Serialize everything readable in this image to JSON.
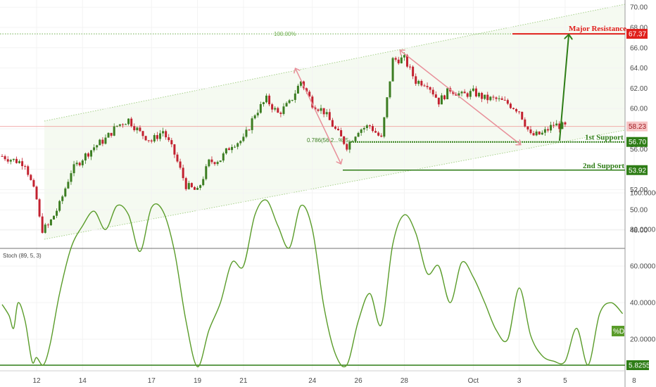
{
  "chart_data": [
    {
      "type": "candlestick",
      "y_range": [
        46.5,
        70.5
      ],
      "y_ticks": [
        "48.00",
        "50.00",
        "52.00",
        "54.00",
        "56.00",
        "58.00",
        "60.00",
        "62.00",
        "64.00",
        "66.00",
        "68.00",
        "70.00"
      ],
      "x_ticks": [
        "12",
        "14",
        "17",
        "19",
        "21",
        "24",
        "26",
        "28",
        "Oct",
        "3",
        "5",
        "8"
      ],
      "x_index": [
        0,
        2,
        5,
        7,
        9,
        12,
        14,
        16,
        19,
        21,
        23,
        26
      ],
      "path": [
        [
          -1.5,
          55.3
        ],
        [
          -1,
          54.9
        ],
        [
          -0.5,
          54.6
        ],
        [
          0,
          51
        ],
        [
          0.2,
          48
        ],
        [
          0.5,
          48.4
        ],
        [
          1,
          50.5
        ],
        [
          1.5,
          53.8
        ],
        [
          2,
          55.1
        ],
        [
          2.5,
          56.2
        ],
        [
          3,
          57
        ],
        [
          3.5,
          58.3
        ],
        [
          4,
          58.9
        ],
        [
          4.5,
          57.6
        ],
        [
          5,
          56.8
        ],
        [
          5.5,
          57.8
        ],
        [
          6,
          55.5
        ],
        [
          6.5,
          52.4
        ],
        [
          7,
          51.8
        ],
        [
          7.5,
          54.7
        ],
        [
          8,
          55
        ],
        [
          8.5,
          56.5
        ],
        [
          9,
          56.9
        ],
        [
          9.5,
          59.5
        ],
        [
          10,
          60.9
        ],
        [
          10.5,
          59.5
        ],
        [
          11,
          60.5
        ],
        [
          11.5,
          62.7
        ],
        [
          12,
          60.5
        ],
        [
          12.5,
          59.7
        ],
        [
          13,
          57.9
        ],
        [
          13.5,
          56.3
        ],
        [
          14,
          57.9
        ],
        [
          14.5,
          58.3
        ],
        [
          15,
          57
        ],
        [
          15.5,
          64.8
        ],
        [
          16,
          64.9
        ],
        [
          16.5,
          62.7
        ],
        [
          17,
          62.5
        ],
        [
          17.5,
          60.7
        ],
        [
          18,
          61.9
        ],
        [
          18.5,
          61.3
        ],
        [
          19,
          61.6
        ],
        [
          19.5,
          61
        ],
        [
          20,
          60.9
        ],
        [
          20.5,
          60.5
        ],
        [
          21,
          59.8
        ],
        [
          21.5,
          57.3
        ],
        [
          22,
          57.5
        ],
        [
          22.5,
          58.4
        ],
        [
          23,
          58.2
        ]
      ],
      "current_price": "58.23",
      "levels": [
        {
          "label": "Major Resistance",
          "value": 67.37,
          "badge": "67.37",
          "color": "#e0201c"
        },
        {
          "label": "1st Support",
          "value": 56.7,
          "badge": "56.70",
          "color": "#2e7d16"
        },
        {
          "label": "2nd Support",
          "value": 53.92,
          "badge": "53.92",
          "color": "#2e7d16"
        }
      ],
      "fib_labels": {
        "top": "100.00%",
        "mid": "0.786(56.2...%(5..."
      }
    },
    {
      "type": "line",
      "title": "Stoch (89, 5, 3)",
      "series": [
        {
          "name": "%D",
          "color": "#5a9c2a"
        }
      ],
      "y_range": [
        0,
        102
      ],
      "y_ticks": [
        "20.0000",
        "40.0000",
        "60.0000",
        "80.0000",
        "100.0000"
      ],
      "min_badge": "5.8255",
      "min_value": 5.8255,
      "points": [
        [
          -1.5,
          39
        ],
        [
          -1.2,
          33
        ],
        [
          -1,
          26
        ],
        [
          -0.8,
          40
        ],
        [
          -0.5,
          30
        ],
        [
          -0.2,
          8
        ],
        [
          0,
          10
        ],
        [
          0.3,
          6
        ],
        [
          0.6,
          18
        ],
        [
          1,
          45
        ],
        [
          1.5,
          70
        ],
        [
          2,
          82
        ],
        [
          2.5,
          90
        ],
        [
          3,
          80
        ],
        [
          3.5,
          93
        ],
        [
          4,
          88
        ],
        [
          4.5,
          68
        ],
        [
          5,
          92
        ],
        [
          5.5,
          90
        ],
        [
          6,
          68
        ],
        [
          6.5,
          30
        ],
        [
          7,
          5
        ],
        [
          7.5,
          25
        ],
        [
          8,
          40
        ],
        [
          8.5,
          62
        ],
        [
          9,
          60
        ],
        [
          9.5,
          88
        ],
        [
          10,
          96
        ],
        [
          10.5,
          82
        ],
        [
          11,
          70
        ],
        [
          11.5,
          93
        ],
        [
          12,
          80
        ],
        [
          12.5,
          38
        ],
        [
          13,
          12
        ],
        [
          13.5,
          6
        ],
        [
          14,
          30
        ],
        [
          14.5,
          45
        ],
        [
          15,
          28
        ],
        [
          15.5,
          72
        ],
        [
          16,
          88
        ],
        [
          16.5,
          78
        ],
        [
          17,
          56
        ],
        [
          17.5,
          60
        ],
        [
          18,
          40
        ],
        [
          18.5,
          62
        ],
        [
          19,
          54
        ],
        [
          19.5,
          40
        ],
        [
          20,
          25
        ],
        [
          20.5,
          20
        ],
        [
          21,
          48
        ],
        [
          21.5,
          22
        ],
        [
          22,
          11
        ],
        [
          22.5,
          8
        ],
        [
          23,
          8
        ],
        [
          23.5,
          26
        ],
        [
          24,
          6
        ],
        [
          24.5,
          34
        ],
        [
          25,
          40
        ],
        [
          25.5,
          34
        ]
      ]
    }
  ]
}
